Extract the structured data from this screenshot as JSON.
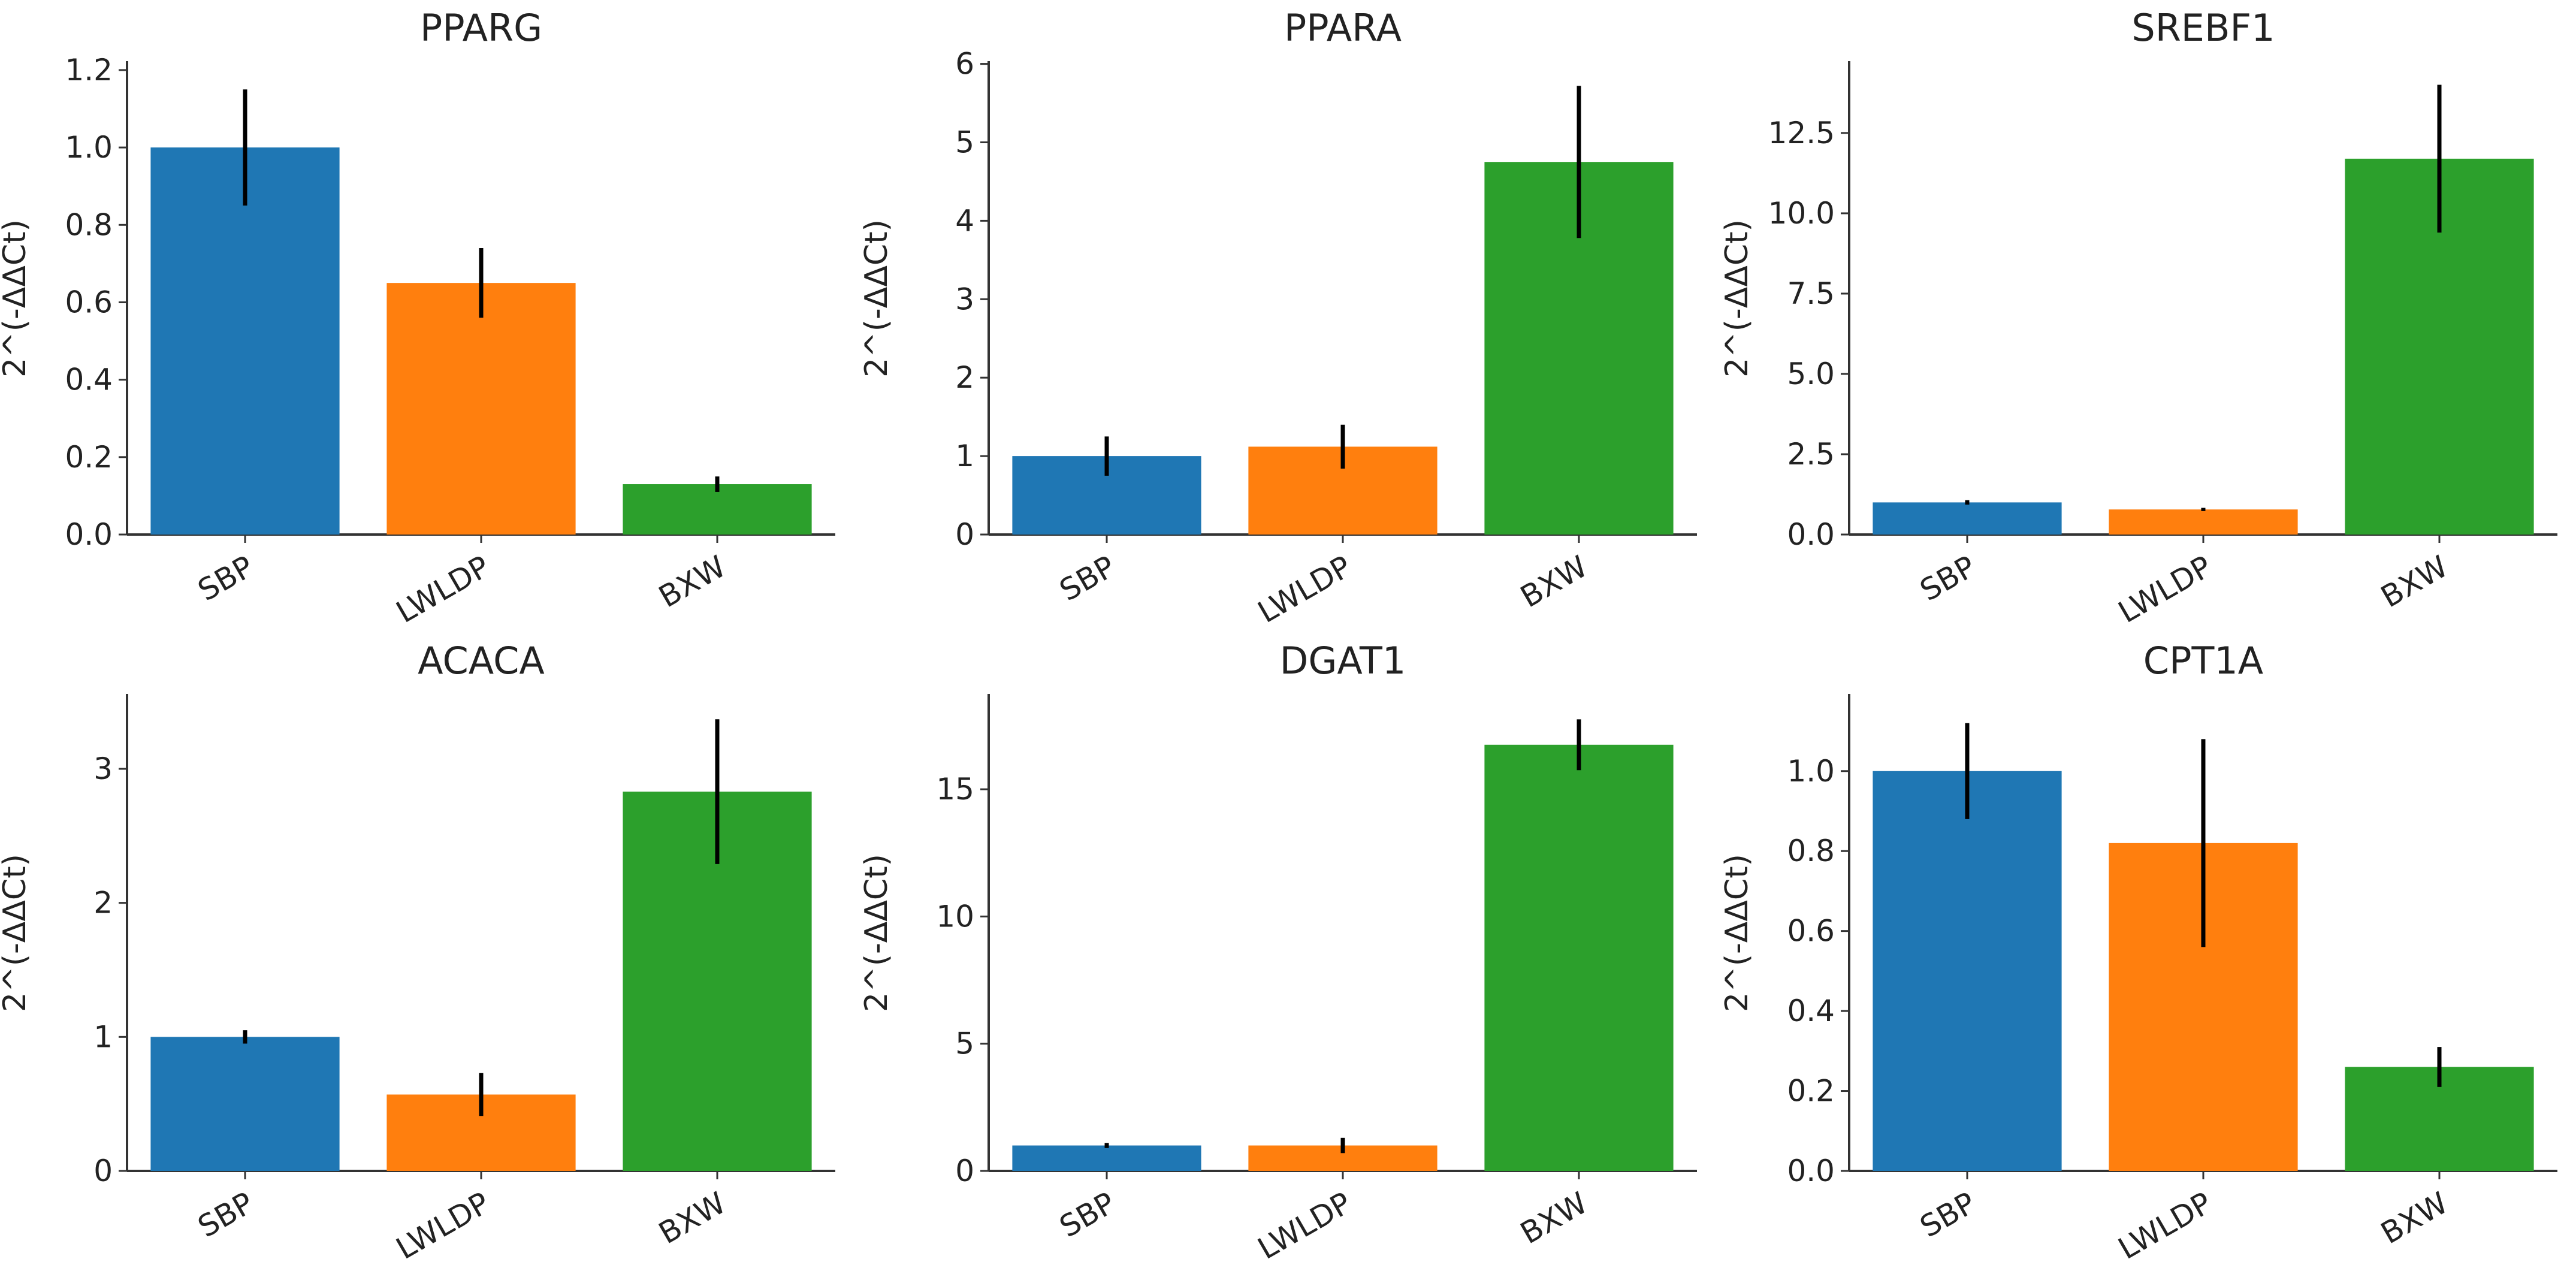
{
  "chart_data": [
    {
      "type": "bar",
      "title": "PPARG",
      "ylabel": "2^(-ΔΔCt)",
      "xlabel": "",
      "categories": [
        "SBP",
        "LWLDP",
        "BXW"
      ],
      "values": [
        1.0,
        0.65,
        0.13
      ],
      "errors": [
        0.15,
        0.09,
        0.02
      ],
      "ylim": [
        0,
        1.22
      ],
      "yticks": [
        0.0,
        0.2,
        0.4,
        0.6,
        0.8,
        1.0,
        1.2
      ],
      "ytick_labels": [
        "0.0",
        "0.2",
        "0.4",
        "0.6",
        "0.8",
        "1.0",
        "1.2"
      ],
      "colors": [
        "#1f77b4",
        "#ff7f0e",
        "#2ca02c"
      ],
      "grid": false
    },
    {
      "type": "bar",
      "title": "PPARA",
      "ylabel": "2^(-ΔΔCt)",
      "xlabel": "",
      "categories": [
        "SBP",
        "LWLDP",
        "BXW"
      ],
      "values": [
        1.0,
        1.12,
        4.75
      ],
      "errors": [
        0.25,
        0.28,
        0.97
      ],
      "ylim": [
        0,
        6.02
      ],
      "yticks": [
        0,
        1,
        2,
        3,
        4,
        5,
        6
      ],
      "ytick_labels": [
        "0",
        "1",
        "2",
        "3",
        "4",
        "5",
        "6"
      ],
      "colors": [
        "#1f77b4",
        "#ff7f0e",
        "#2ca02c"
      ],
      "grid": false
    },
    {
      "type": "bar",
      "title": "SREBF1",
      "ylabel": "2^(-ΔΔCt)",
      "xlabel": "",
      "categories": [
        "SBP",
        "LWLDP",
        "BXW"
      ],
      "values": [
        1.0,
        0.78,
        11.7
      ],
      "errors": [
        0.07,
        0.05,
        2.3
      ],
      "ylim": [
        0,
        14.7
      ],
      "yticks": [
        0.0,
        2.5,
        5.0,
        7.5,
        10.0,
        12.5
      ],
      "ytick_labels": [
        "0.0",
        "2.5",
        "5.0",
        "7.5",
        "10.0",
        "12.5"
      ],
      "colors": [
        "#1f77b4",
        "#ff7f0e",
        "#2ca02c"
      ],
      "grid": false
    },
    {
      "type": "bar",
      "title": "ACACA",
      "ylabel": "2^(-ΔΔCt)",
      "xlabel": "",
      "categories": [
        "SBP",
        "LWLDP",
        "BXW"
      ],
      "values": [
        1.0,
        0.57,
        2.83
      ],
      "errors": [
        0.05,
        0.16,
        0.54
      ],
      "ylim": [
        0,
        3.55
      ],
      "yticks": [
        0,
        1,
        2,
        3
      ],
      "ytick_labels": [
        "0",
        "1",
        "2",
        "3"
      ],
      "colors": [
        "#1f77b4",
        "#ff7f0e",
        "#2ca02c"
      ],
      "grid": false
    },
    {
      "type": "bar",
      "title": "DGAT1",
      "ylabel": "2^(-ΔΔCt)",
      "xlabel": "",
      "categories": [
        "SBP",
        "LWLDP",
        "BXW"
      ],
      "values": [
        1.0,
        1.0,
        16.75
      ],
      "errors": [
        0.1,
        0.3,
        1.0
      ],
      "ylim": [
        0,
        18.7
      ],
      "yticks": [
        0,
        5,
        10,
        15
      ],
      "ytick_labels": [
        "0",
        "5",
        "10",
        "15"
      ],
      "colors": [
        "#1f77b4",
        "#ff7f0e",
        "#2ca02c"
      ],
      "grid": false
    },
    {
      "type": "bar",
      "title": "CPT1A",
      "ylabel": "2^(-ΔΔCt)",
      "xlabel": "",
      "categories": [
        "SBP",
        "LWLDP",
        "BXW"
      ],
      "values": [
        1.0,
        0.82,
        0.26
      ],
      "errors": [
        0.12,
        0.26,
        0.05
      ],
      "ylim": [
        0,
        1.19
      ],
      "yticks": [
        0.0,
        0.2,
        0.4,
        0.6,
        0.8,
        1.0
      ],
      "ytick_labels": [
        "0.0",
        "0.2",
        "0.4",
        "0.6",
        "0.8",
        "1.0"
      ],
      "colors": [
        "#1f77b4",
        "#ff7f0e",
        "#2ca02c"
      ],
      "grid": false
    }
  ]
}
